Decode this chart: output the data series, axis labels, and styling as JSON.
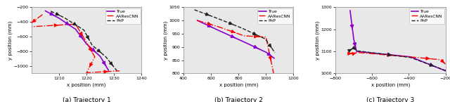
{
  "traj1": {
    "true": [
      [
        1205,
        -250
      ],
      [
        1210,
        -350
      ],
      [
        1216,
        -500
      ],
      [
        1220,
        -700
      ],
      [
        1225,
        -870
      ],
      [
        1228,
        -1060
      ]
    ],
    "aares": [
      [
        1204,
        -300
      ],
      [
        1198,
        -470
      ],
      [
        1216,
        -430
      ],
      [
        1220,
        -680
      ],
      [
        1223,
        -875
      ],
      [
        1220,
        -1090
      ],
      [
        1232,
        -1065
      ]
    ],
    "pnp": [
      [
        1207,
        -255
      ],
      [
        1212,
        -345
      ],
      [
        1219,
        -510
      ],
      [
        1222,
        -715
      ],
      [
        1227,
        -875
      ],
      [
        1231,
        -1062
      ]
    ],
    "xlim": [
      1200,
      1240
    ],
    "ylim": [
      -1100,
      -200
    ],
    "xticks": [
      1210,
      1220,
      1230,
      1240
    ],
    "yticks": [
      -1000,
      -800,
      -600,
      -400,
      -200
    ],
    "xlabel": "x position (mm)",
    "ylabel": "y position (mm)",
    "caption": "(a) Trajectory 1"
  },
  "traj2": {
    "true": [
      [
        500,
        1000
      ],
      [
        665,
        960
      ],
      [
        835,
        920
      ],
      [
        1000,
        880
      ],
      [
        1060,
        857
      ]
    ],
    "aares": [
      [
        500,
        1000
      ],
      [
        660,
        975
      ],
      [
        840,
        942
      ],
      [
        1000,
        937
      ],
      [
        1055,
        800
      ]
    ],
    "pnp": [
      [
        480,
        1040
      ],
      [
        650,
        1007
      ],
      [
        820,
        972
      ],
      [
        995,
        930
      ],
      [
        1065,
        878
      ]
    ],
    "xlim": [
      400,
      1200
    ],
    "ylim": [
      800,
      1050
    ],
    "xticks": [
      400,
      600,
      800,
      1000,
      1200
    ],
    "yticks": [
      800,
      850,
      900,
      950,
      1000,
      1050
    ],
    "xlabel": "x position (mm)",
    "ylabel": "y position (mm)",
    "caption": "(b) Trajectory 2"
  },
  "traj3": {
    "true": [
      [
        -720,
        1285
      ],
      [
        -700,
        1155
      ],
      [
        -685,
        1100
      ],
      [
        -390,
        1075
      ],
      [
        -195,
        1010
      ]
    ],
    "aares": [
      [
        -730,
        1090
      ],
      [
        -700,
        1090
      ],
      [
        -680,
        1095
      ],
      [
        -395,
        1075
      ],
      [
        -225,
        1062
      ],
      [
        -195,
        1038
      ]
    ],
    "pnp": [
      [
        -728,
        1102
      ],
      [
        -700,
        1115
      ],
      [
        -680,
        1102
      ],
      [
        -390,
        1072
      ],
      [
        -195,
        1012
      ]
    ],
    "xlim": [
      -800,
      -200
    ],
    "ylim": [
      1000,
      1300
    ],
    "xticks": [
      -800,
      -600,
      -400,
      -200
    ],
    "yticks": [
      1000,
      1100,
      1200,
      1300
    ],
    "xlabel": "x position (mm)",
    "ylabel": "y position (mm)",
    "caption": "(c) Trajectory 3"
  },
  "methods": [
    {
      "key": "true",
      "color": "#8B00CC",
      "ls": "-",
      "lw": 1.2,
      "label": "True"
    },
    {
      "key": "aares",
      "color": "#FF0000",
      "ls": "-.",
      "lw": 1.0,
      "label": "AAResCNN"
    },
    {
      "key": "pnp",
      "color": "#222222",
      "ls": "--",
      "lw": 1.0,
      "label": "PnP"
    }
  ],
  "bg_color": "#e8e8e8",
  "fig_facecolor": "white",
  "arrow_scale": 7,
  "tick_fontsize": 4.5,
  "label_fontsize": 5.0,
  "legend_fontsize": 4.3,
  "caption_fontsize": 6.5
}
